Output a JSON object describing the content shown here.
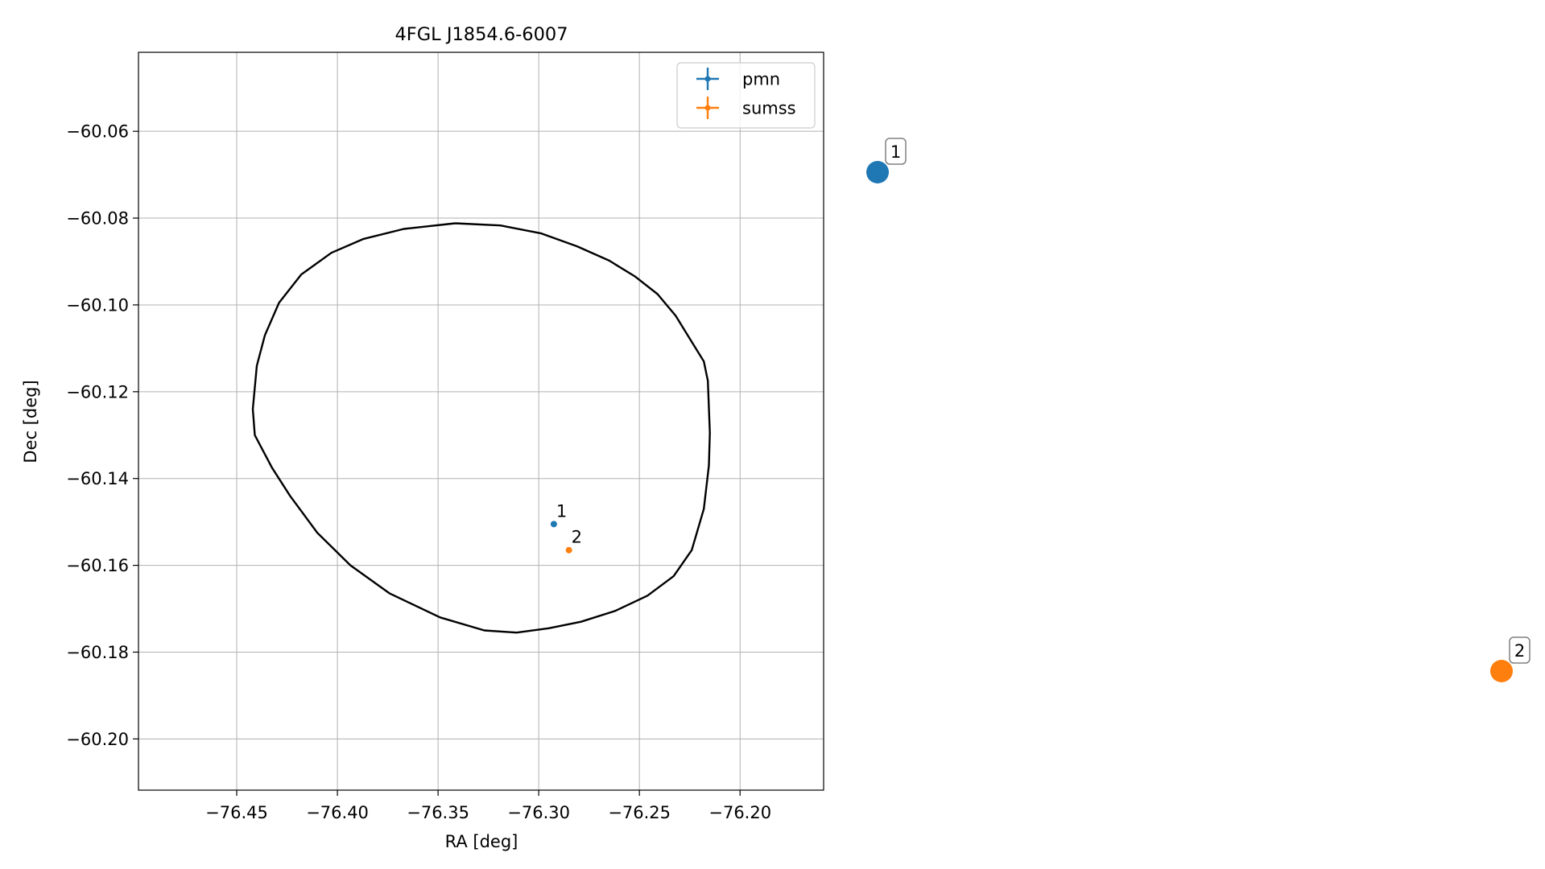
{
  "chart_data": {
    "type": "scatter",
    "title": "4FGL J1854.6-6007",
    "xlabel": "RA [deg]",
    "ylabel": "Dec [deg]",
    "xlim": [
      -76.4988,
      -76.1585
    ],
    "ylim": [
      -60.2118,
      -60.0418
    ],
    "xticks": [
      -76.45,
      -76.4,
      -76.35,
      -76.3,
      -76.25,
      -76.2
    ],
    "xtick_labels": [
      "−76.45",
      "−76.40",
      "−76.35",
      "−76.30",
      "−76.25",
      "−76.20"
    ],
    "yticks": [
      -60.06,
      -60.08,
      -60.1,
      -60.12,
      -60.14,
      -60.16,
      -60.18,
      -60.2
    ],
    "ytick_labels": [
      "−60.06",
      "−60.08",
      "−60.10",
      "−60.12",
      "−60.14",
      "−60.16",
      "−60.18",
      "−60.20"
    ],
    "grid": true,
    "legend": {
      "placement": "top-right"
    },
    "series": [
      {
        "name": "pmn",
        "color": "#1f77b4",
        "points": [
          {
            "x": -76.2925,
            "y": -60.1505,
            "label": "1"
          }
        ]
      },
      {
        "name": "sumss",
        "color": "#ff7f0e",
        "points": [
          {
            "x": -76.285,
            "y": -60.1565,
            "label": "2"
          }
        ]
      }
    ],
    "ellipse": {
      "color": "#000000",
      "points": [
        [
          -76.3415,
          -60.0812
        ],
        [
          -76.319,
          -60.0817
        ],
        [
          -76.299,
          -60.0835
        ],
        [
          -76.281,
          -60.0865
        ],
        [
          -76.265,
          -60.0898
        ],
        [
          -76.252,
          -60.0935
        ],
        [
          -76.241,
          -60.0975
        ],
        [
          -76.232,
          -60.1025
        ],
        [
          -76.226,
          -60.107
        ],
        [
          -76.218,
          -60.113
        ],
        [
          -76.216,
          -60.1175
        ],
        [
          -76.215,
          -60.1295
        ],
        [
          -76.2155,
          -60.137
        ],
        [
          -76.218,
          -60.147
        ],
        [
          -76.224,
          -60.1565
        ],
        [
          -76.233,
          -60.1625
        ],
        [
          -76.246,
          -60.167
        ],
        [
          -76.262,
          -60.1705
        ],
        [
          -76.279,
          -60.173
        ],
        [
          -76.295,
          -60.1745
        ],
        [
          -76.311,
          -60.1755
        ],
        [
          -76.327,
          -60.175
        ],
        [
          -76.349,
          -60.172
        ],
        [
          -76.374,
          -60.1665
        ],
        [
          -76.3935,
          -60.16
        ],
        [
          -76.41,
          -60.1525
        ],
        [
          -76.4235,
          -60.144
        ],
        [
          -76.4325,
          -60.1375
        ],
        [
          -76.441,
          -60.13
        ],
        [
          -76.442,
          -60.124
        ],
        [
          -76.44,
          -60.114
        ],
        [
          -76.436,
          -60.107
        ],
        [
          -76.429,
          -60.0995
        ],
        [
          -76.418,
          -60.093
        ],
        [
          -76.403,
          -60.088
        ],
        [
          -76.387,
          -60.0848
        ],
        [
          -76.367,
          -60.0825
        ],
        [
          -76.3415,
          -60.0812
        ]
      ]
    },
    "side_markers": [
      {
        "label": "1",
        "color": "#1f77b4"
      },
      {
        "label": "2",
        "color": "#ff7f0e"
      }
    ]
  }
}
